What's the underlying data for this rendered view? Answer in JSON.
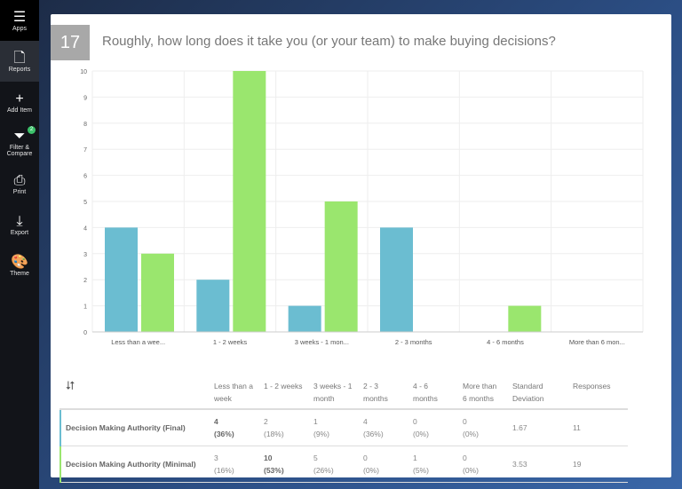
{
  "sidebar": {
    "items": [
      {
        "label": "Apps",
        "icon": "list-icon"
      },
      {
        "label": "Reports",
        "icon": "document-icon"
      },
      {
        "label": "Add Item",
        "icon": "plus-icon"
      },
      {
        "label": "Filter & Compare",
        "icon": "filter-icon",
        "badge": "2"
      },
      {
        "label": "Print",
        "icon": "printer-icon"
      },
      {
        "label": "Export",
        "icon": "export-icon"
      },
      {
        "label": "Theme",
        "icon": "palette-icon"
      }
    ]
  },
  "question": {
    "number": "17",
    "title": "Roughly, how long does it take you (or your team) to make buying decisions?"
  },
  "colors": {
    "final": "#6bbdd1",
    "minimal": "#9ae66e"
  },
  "chart_data": {
    "type": "bar",
    "categories": [
      "Less than a wee...",
      "1 - 2 weeks",
      "3 weeks - 1 mon...",
      "2 - 3 months",
      "4 - 6 months",
      "More than 6 mon..."
    ],
    "series": [
      {
        "values": [
          4,
          2,
          1,
          4,
          0,
          0
        ]
      },
      {
        "values": [
          3,
          10,
          5,
          0,
          1,
          0
        ]
      }
    ],
    "ylim": [
      0,
      10
    ],
    "yticks": [
      "0",
      "1",
      "2",
      "3",
      "4",
      "5",
      "6",
      "7",
      "8",
      "9",
      "10"
    ],
    "grid": true
  },
  "table": {
    "headers": [
      "Less than a week",
      "1 - 2 weeks",
      "3 weeks - 1 month",
      "2 - 3 months",
      "4 - 6 months",
      "More than 6 months",
      "Standard Deviation",
      "Responses"
    ],
    "rows": [
      {
        "label": "Decision Making Authority (Final)",
        "cells": [
          [
            "4",
            "(36%)"
          ],
          [
            "2",
            "(18%)"
          ],
          [
            "1",
            "(9%)"
          ],
          [
            "4",
            "(36%)"
          ],
          [
            "0",
            "(0%)"
          ],
          [
            "0",
            "(0%)"
          ]
        ],
        "std": "1.67",
        "responses": "11",
        "bold": 0
      },
      {
        "label": "Decision Making Authority (Minimal)",
        "cells": [
          [
            "3",
            "(16%)"
          ],
          [
            "10",
            "(53%)"
          ],
          [
            "5",
            "(26%)"
          ],
          [
            "0",
            "(0%)"
          ],
          [
            "1",
            "(5%)"
          ],
          [
            "0",
            "(0%)"
          ]
        ],
        "std": "3.53",
        "responses": "19",
        "bold": 1
      }
    ]
  }
}
